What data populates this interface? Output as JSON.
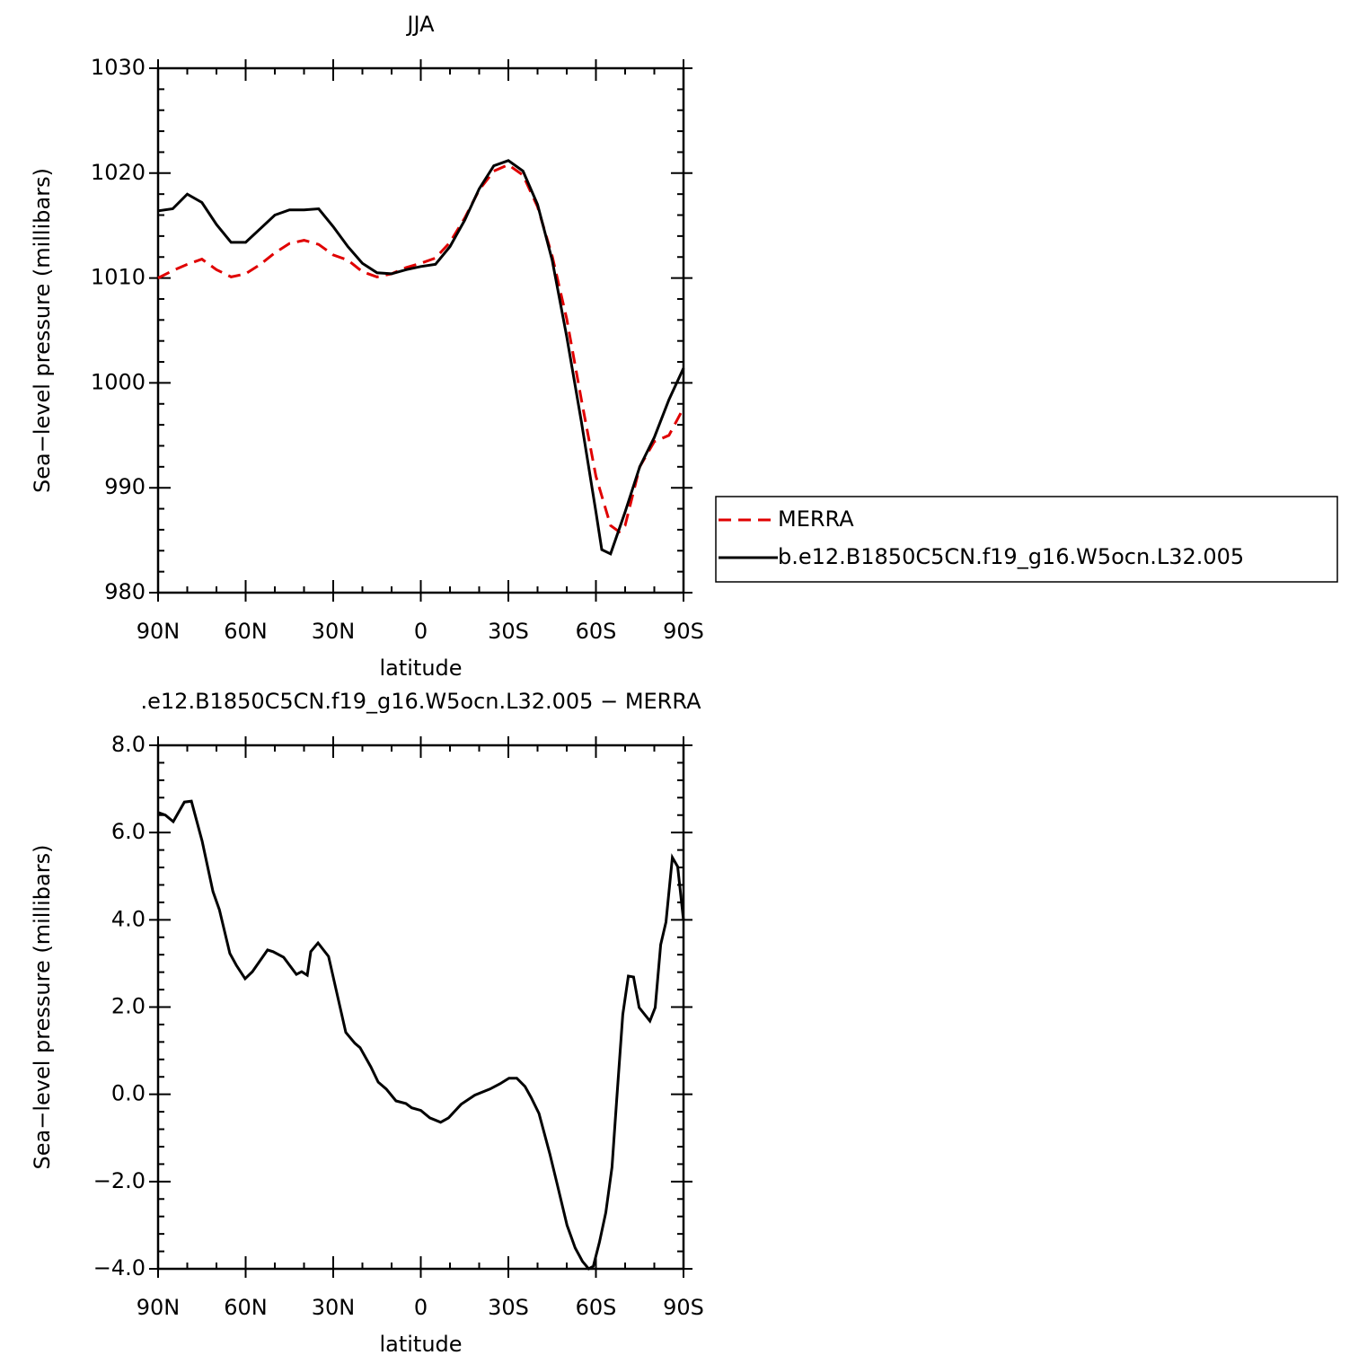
{
  "chart_data": [
    {
      "type": "line",
      "title": "JJA",
      "xlabel": "latitude",
      "ylabel": "Sea−level pressure (millibars)",
      "xlim": [
        90,
        -90
      ],
      "ylim": [
        980,
        1030
      ],
      "xticks": [
        {
          "value": 90,
          "label": "90N"
        },
        {
          "value": 60,
          "label": "60N"
        },
        {
          "value": 30,
          "label": "30N"
        },
        0,
        {
          "value": -30,
          "label": "30S"
        },
        {
          "value": -60,
          "label": "60S"
        },
        {
          "value": -90,
          "label": "90S"
        }
      ],
      "yticks": [
        980,
        990,
        1000,
        1010,
        1020,
        1030
      ],
      "series": [
        {
          "name": "MERRA",
          "color": "#e00000",
          "dashed": true,
          "x": [
            90,
            85,
            80,
            75,
            70,
            65,
            60,
            55,
            50,
            45,
            40,
            35,
            30,
            25,
            20,
            15,
            10,
            5,
            0,
            -5,
            -10,
            -15,
            -20,
            -25,
            -30,
            -35,
            -40,
            -45,
            -50,
            -55,
            -60,
            -65,
            -68,
            -70,
            -75,
            -80,
            -85,
            -90
          ],
          "values": [
            1010.0,
            1010.7,
            1011.3,
            1011.8,
            1010.8,
            1010.1,
            1010.4,
            1011.3,
            1012.4,
            1013.3,
            1013.6,
            1013.2,
            1012.2,
            1011.7,
            1010.6,
            1010.1,
            1010.4,
            1011.0,
            1011.4,
            1011.9,
            1013.4,
            1015.7,
            1018.4,
            1020.2,
            1020.8,
            1019.8,
            1016.8,
            1012.1,
            1006.1,
            998.4,
            991.1,
            986.4,
            985.8,
            986.4,
            992.0,
            994.4,
            995.0,
            997.6
          ]
        },
        {
          "name": "b.e12.B1850C5CN.f19_g16.W5ocn.L32.005",
          "color": "#000000",
          "dashed": false,
          "x": [
            90,
            85,
            80,
            75,
            70,
            65,
            60,
            55,
            50,
            45,
            40,
            35,
            30,
            25,
            20,
            15,
            10,
            5,
            0,
            -5,
            -10,
            -15,
            -20,
            -25,
            -30,
            -35,
            -40,
            -45,
            -50,
            -55,
            -60,
            -62,
            -65,
            -70,
            -75,
            -80,
            -85,
            -90
          ],
          "values": [
            1016.4,
            1016.6,
            1018.0,
            1017.2,
            1015.1,
            1013.4,
            1013.4,
            1014.7,
            1016.0,
            1016.5,
            1016.5,
            1016.6,
            1014.9,
            1013.0,
            1011.4,
            1010.5,
            1010.4,
            1010.8,
            1011.1,
            1011.3,
            1013.0,
            1015.5,
            1018.5,
            1020.7,
            1021.2,
            1020.2,
            1017.0,
            1011.7,
            1004.4,
            996.3,
            987.7,
            984.1,
            983.7,
            987.7,
            992.0,
            994.8,
            998.4,
            1001.4
          ]
        }
      ]
    },
    {
      "type": "line",
      "title": ".e12.B1850C5CN.f19_g16.W5ocn.L32.005 − MERRA",
      "xlabel": "latitude",
      "ylabel": "Sea−level pressure (millibars)",
      "xlim": [
        90,
        -90
      ],
      "ylim": [
        -4,
        8
      ],
      "xticks": [
        {
          "value": 90,
          "label": "90N"
        },
        {
          "value": 60,
          "label": "60N"
        },
        {
          "value": 30,
          "label": "30N"
        },
        0,
        {
          "value": -30,
          "label": "30S"
        },
        {
          "value": -60,
          "label": "60S"
        },
        {
          "value": -90,
          "label": "90S"
        }
      ],
      "yticks": [
        {
          "value": -4,
          "label": "−4.0"
        },
        {
          "value": -2,
          "label": "−2.0"
        },
        {
          "value": 0,
          "label": "0.0"
        },
        {
          "value": 2,
          "label": "2.0"
        },
        {
          "value": 4,
          "label": "4.0"
        },
        {
          "value": 6,
          "label": "6.0"
        },
        {
          "value": 8,
          "label": "8.0"
        }
      ],
      "series": [
        {
          "color": "#000000",
          "dashed": false,
          "x": [
            90,
            87.5,
            84.8,
            81,
            78.6,
            74.9,
            71.2,
            69,
            65.4,
            63.2,
            60.2,
            57.7,
            52.5,
            50.6,
            47,
            42.6,
            40.8,
            38.9,
            37.7,
            35.2,
            31.6,
            25.7,
            22.6,
            20.8,
            17.1,
            14.6,
            11.8,
            8.5,
            5.1,
            3.1,
            0,
            -3.1,
            -6.8,
            -9.5,
            -13.8,
            -18.5,
            -23.7,
            -27.1,
            -30.2,
            -32.9,
            -35.7,
            -37.8,
            -40.5,
            -44.2,
            -46.8,
            -50.1,
            -52.9,
            -55.4,
            -57.5,
            -59.1,
            -61.2,
            -63.4,
            -65.5,
            -67.1,
            -69.2,
            -71.1,
            -72.9,
            -74.8,
            -78.5,
            -80.3,
            -82.2,
            -84,
            -86.2,
            -88,
            -90
          ],
          "values": [
            6.46,
            6.4,
            6.25,
            6.7,
            6.72,
            5.8,
            4.65,
            4.23,
            3.23,
            2.96,
            2.65,
            2.81,
            3.31,
            3.27,
            3.14,
            2.75,
            2.81,
            2.73,
            3.27,
            3.47,
            3.16,
            1.42,
            1.17,
            1.07,
            0.63,
            0.28,
            0.12,
            -0.15,
            -0.21,
            -0.31,
            -0.37,
            -0.54,
            -0.64,
            -0.54,
            -0.23,
            -0.02,
            0.12,
            0.24,
            0.37,
            0.37,
            0.18,
            -0.07,
            -0.44,
            -1.36,
            -2.08,
            -3.0,
            -3.52,
            -3.83,
            -4.0,
            -3.94,
            -3.39,
            -2.71,
            -1.67,
            -0.13,
            1.83,
            2.71,
            2.69,
            1.99,
            1.68,
            1.99,
            3.43,
            3.95,
            5.43,
            5.22,
            3.99
          ]
        }
      ]
    }
  ]
}
